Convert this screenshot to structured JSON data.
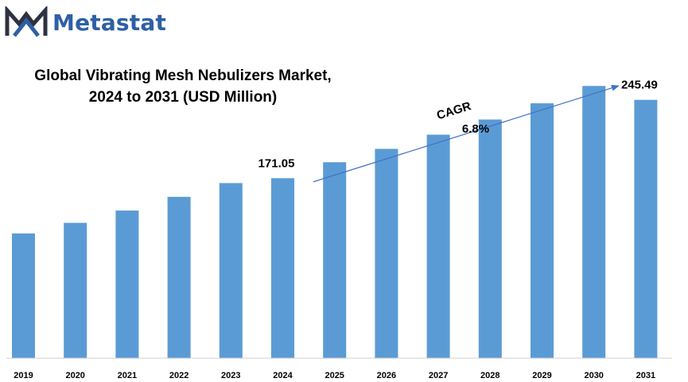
{
  "brand": {
    "name": "Metastat",
    "logo_icon": "mountain-m-logo-icon",
    "color": "#2e5fa6"
  },
  "chart_data": {
    "type": "bar",
    "title_line1": "Global Vibrating Mesh Nebulizers Market,",
    "title_line2": "2024 to 2031 (USD Million)",
    "categories": [
      "2019",
      "2020",
      "2021",
      "2022",
      "2023",
      "2024",
      "2025",
      "2026",
      "2027",
      "2028",
      "2029",
      "2030",
      "2031"
    ],
    "values": [
      118.5,
      128.6,
      140.3,
      153.3,
      166.4,
      171.05,
      186.2,
      198.9,
      212.4,
      226.8,
      242.2,
      258.7,
      245.49
    ],
    "data_labels": [
      {
        "category": "2024",
        "text": "171.05"
      },
      {
        "category": "2031",
        "text": "245.49"
      }
    ],
    "annotation": {
      "label": "CAGR",
      "value": "6.8%",
      "from": "2025",
      "to": "2031"
    },
    "bar_color": "#5b9bd5",
    "arrow_color": "#4472c4",
    "ylim": [
      0,
      280
    ],
    "grid": false,
    "y_axis_visible": false
  }
}
